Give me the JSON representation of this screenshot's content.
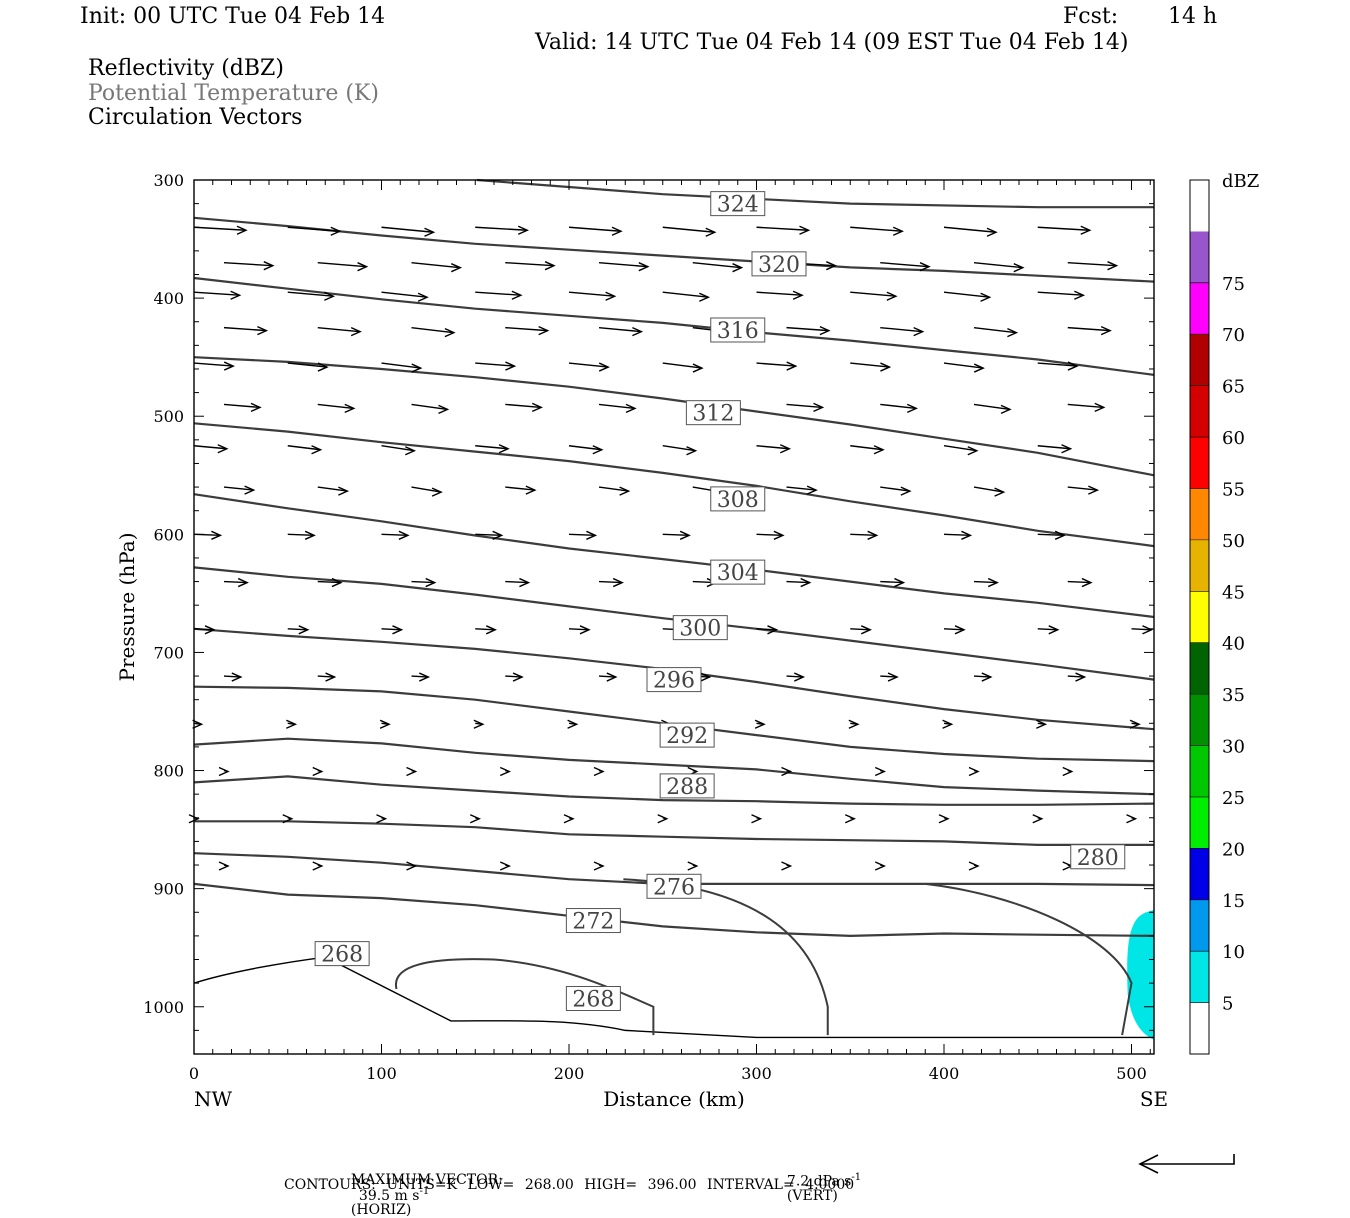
{
  "header": {
    "init": "Init: 00 UTC Tue 04 Feb 14",
    "fcst_label": "Fcst:",
    "fcst_value": "14 h",
    "valid": "Valid: 14 UTC Tue 04 Feb 14 (09 EST Tue 04 Feb 14)"
  },
  "legend": {
    "reflectivity": "Reflectivity (dBZ)",
    "theta": "Potential Temperature (K)",
    "vectors": "Circulation Vectors"
  },
  "footer": {
    "max_vector_label": "MAXIMUM VECTOR:",
    "horiz_value": "39.5 m s",
    "horiz_sup": "-1",
    "horiz_tag": "(HORIZ)",
    "vert_value": "7.2 dPa s",
    "vert_sup": "-1",
    "vert_tag": "(VERT)",
    "contours_line": "CONTOURS: UNITS=K LOW= 268.00 HIGH= 396.00 INTERVAL= 4.0000"
  },
  "chart_data": {
    "type": "cross-section",
    "xlabel": "Distance (km)",
    "ylabel": "Pressure (hPa)",
    "xlim": [
      0,
      512
    ],
    "ylim": [
      1040,
      300
    ],
    "x_ticks": [
      "0",
      "100",
      "200",
      "300",
      "400",
      "500"
    ],
    "y_ticks": [
      "300",
      "400",
      "500",
      "600",
      "700",
      "800",
      "900",
      "1000"
    ],
    "endpoints": {
      "left": "NW",
      "right": "SE"
    },
    "colorbar": {
      "title": "dBZ",
      "labels": [
        "5",
        "10",
        "15",
        "20",
        "25",
        "30",
        "35",
        "40",
        "45",
        "50",
        "55",
        "60",
        "65",
        "70",
        "75"
      ],
      "colors": [
        "#ffffff",
        "#00e6e6",
        "#0099ee",
        "#0000e6",
        "#00ee00",
        "#00c800",
        "#009000",
        "#006400",
        "#ffff00",
        "#e6b400",
        "#ff8800",
        "#ff0000",
        "#d40000",
        "#b00000",
        "#ff00ff",
        "#9955cc",
        "#ffffff"
      ]
    },
    "contour_color": "#3c3c3c",
    "contour_labels": [
      {
        "label": "324",
        "x": 290,
        "p": 320
      },
      {
        "label": "320",
        "x": 312,
        "p": 371
      },
      {
        "label": "316",
        "x": 290,
        "p": 427
      },
      {
        "label": "312",
        "x": 277,
        "p": 497
      },
      {
        "label": "308",
        "x": 290,
        "p": 570
      },
      {
        "label": "304",
        "x": 290,
        "p": 632
      },
      {
        "label": "300",
        "x": 270,
        "p": 679
      },
      {
        "label": "296",
        "x": 256,
        "p": 723
      },
      {
        "label": "292",
        "x": 263,
        "p": 770
      },
      {
        "label": "288",
        "x": 263,
        "p": 813
      },
      {
        "label": "280",
        "x": 482,
        "p": 873
      },
      {
        "label": "276",
        "x": 256,
        "p": 898
      },
      {
        "label": "272",
        "x": 213,
        "p": 927
      },
      {
        "label": "268",
        "x": 79,
        "p": 955
      },
      {
        "label": "268",
        "x": 213,
        "p": 993
      }
    ],
    "contours": [
      {
        "theta": 324,
        "points": [
          [
            151,
            300
          ],
          [
            250,
            312
          ],
          [
            350,
            320
          ],
          [
            450,
            323
          ],
          [
            512,
            323
          ]
        ]
      },
      {
        "theta": 320,
        "points": [
          [
            0,
            332
          ],
          [
            50,
            339
          ],
          [
            100,
            347
          ],
          [
            150,
            354
          ],
          [
            200,
            359
          ],
          [
            250,
            364
          ],
          [
            300,
            369
          ],
          [
            350,
            374
          ],
          [
            400,
            377
          ],
          [
            450,
            381
          ],
          [
            512,
            386
          ]
        ]
      },
      {
        "theta": 316,
        "points": [
          [
            0,
            383
          ],
          [
            50,
            392
          ],
          [
            100,
            401
          ],
          [
            150,
            409
          ],
          [
            200,
            415
          ],
          [
            250,
            421
          ],
          [
            300,
            429
          ],
          [
            350,
            436
          ],
          [
            400,
            444
          ],
          [
            450,
            452
          ],
          [
            512,
            465
          ]
        ]
      },
      {
        "theta": 312,
        "points": [
          [
            0,
            450
          ],
          [
            50,
            454
          ],
          [
            100,
            460
          ],
          [
            150,
            467
          ],
          [
            200,
            475
          ],
          [
            250,
            485
          ],
          [
            300,
            496
          ],
          [
            350,
            507
          ],
          [
            400,
            519
          ],
          [
            450,
            531
          ],
          [
            512,
            550
          ]
        ]
      },
      {
        "theta": 308,
        "points": [
          [
            0,
            506
          ],
          [
            50,
            513
          ],
          [
            100,
            522
          ],
          [
            150,
            530
          ],
          [
            200,
            538
          ],
          [
            250,
            548
          ],
          [
            300,
            559
          ],
          [
            350,
            572
          ],
          [
            400,
            584
          ],
          [
            450,
            597
          ],
          [
            512,
            610
          ]
        ]
      },
      {
        "theta": 304,
        "points": [
          [
            0,
            566
          ],
          [
            50,
            578
          ],
          [
            100,
            589
          ],
          [
            150,
            601
          ],
          [
            200,
            612
          ],
          [
            250,
            621
          ],
          [
            300,
            630
          ],
          [
            350,
            640
          ],
          [
            400,
            650
          ],
          [
            450,
            658
          ],
          [
            512,
            670
          ]
        ]
      },
      {
        "theta": 300,
        "points": [
          [
            0,
            628
          ],
          [
            50,
            636
          ],
          [
            100,
            642
          ],
          [
            150,
            651
          ],
          [
            200,
            661
          ],
          [
            250,
            671
          ],
          [
            300,
            680
          ],
          [
            350,
            690
          ],
          [
            400,
            700
          ],
          [
            450,
            710
          ],
          [
            512,
            723
          ]
        ]
      },
      {
        "theta": 296,
        "points": [
          [
            0,
            680
          ],
          [
            50,
            686
          ],
          [
            100,
            691
          ],
          [
            150,
            697
          ],
          [
            200,
            705
          ],
          [
            250,
            714
          ],
          [
            300,
            725
          ],
          [
            350,
            737
          ],
          [
            400,
            748
          ],
          [
            450,
            757
          ],
          [
            512,
            765
          ]
        ]
      },
      {
        "theta": 292,
        "points": [
          [
            0,
            729
          ],
          [
            50,
            730
          ],
          [
            100,
            733
          ],
          [
            150,
            740
          ],
          [
            200,
            750
          ],
          [
            250,
            760
          ],
          [
            300,
            770
          ],
          [
            350,
            780
          ],
          [
            400,
            786
          ],
          [
            450,
            790
          ],
          [
            512,
            792
          ]
        ]
      },
      {
        "theta": 288,
        "points": [
          [
            0,
            778
          ],
          [
            50,
            773
          ],
          [
            100,
            777
          ],
          [
            150,
            785
          ],
          [
            200,
            791
          ],
          [
            250,
            795
          ],
          [
            300,
            799
          ],
          [
            350,
            807
          ],
          [
            400,
            814
          ],
          [
            450,
            817
          ],
          [
            512,
            820
          ]
        ]
      },
      {
        "theta": 284,
        "points": [
          [
            0,
            810
          ],
          [
            50,
            805
          ],
          [
            100,
            812
          ],
          [
            150,
            817
          ],
          [
            200,
            822
          ],
          [
            250,
            825
          ],
          [
            300,
            826
          ],
          [
            350,
            828
          ],
          [
            400,
            829
          ],
          [
            450,
            829
          ],
          [
            512,
            828
          ]
        ]
      },
      {
        "theta": 280,
        "points": [
          [
            0,
            843
          ],
          [
            50,
            843
          ],
          [
            100,
            845
          ],
          [
            150,
            848
          ],
          [
            200,
            854
          ],
          [
            250,
            856
          ],
          [
            300,
            858
          ],
          [
            350,
            859
          ],
          [
            400,
            860
          ],
          [
            450,
            863
          ],
          [
            512,
            863
          ]
        ]
      },
      {
        "theta": 276,
        "points": [
          [
            0,
            870
          ],
          [
            50,
            873
          ],
          [
            100,
            878
          ],
          [
            150,
            885
          ],
          [
            200,
            892
          ],
          [
            250,
            896
          ],
          [
            300,
            896
          ],
          [
            350,
            896
          ],
          [
            400,
            896
          ],
          [
            450,
            896
          ],
          [
            512,
            897
          ]
        ]
      },
      {
        "theta": 272,
        "points": [
          [
            0,
            896
          ],
          [
            50,
            905
          ],
          [
            100,
            908
          ],
          [
            150,
            914
          ],
          [
            200,
            923
          ],
          [
            250,
            932
          ],
          [
            300,
            937
          ],
          [
            350,
            940
          ],
          [
            400,
            938
          ],
          [
            450,
            939
          ],
          [
            512,
            940
          ]
        ]
      }
    ],
    "vectors": [
      {
        "x": 50,
        "p": 332,
        "u": 50,
        "w": 0
      }
    ]
  }
}
